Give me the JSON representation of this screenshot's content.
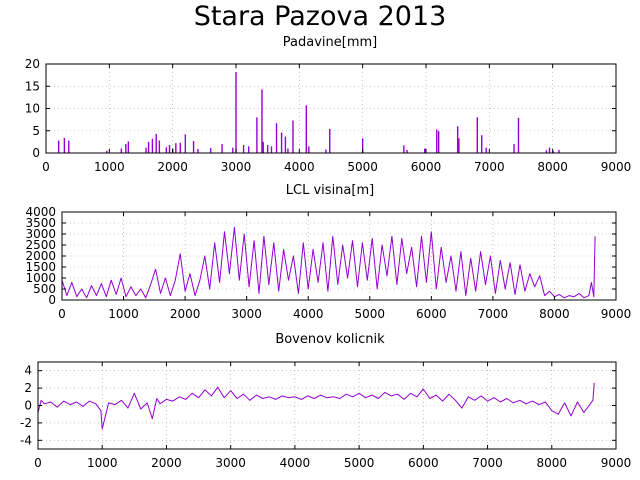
{
  "title": "Stara Pazova 2013",
  "series_color": "#9400d3",
  "chart_data": [
    {
      "type": "bar",
      "title": "Padavine[mm]",
      "xlim": [
        0,
        9000
      ],
      "ylim": [
        0,
        20
      ],
      "xticks": [
        0,
        1000,
        2000,
        3000,
        4000,
        5000,
        6000,
        7000,
        8000,
        9000
      ],
      "yticks": [
        0,
        5,
        10,
        15,
        20
      ],
      "grid": true,
      "x": [
        200,
        290,
        360,
        960,
        1190,
        1260,
        1300,
        1580,
        1620,
        1680,
        1740,
        1790,
        1900,
        1950,
        2000,
        2050,
        2120,
        2200,
        2330,
        2400,
        2600,
        2780,
        2950,
        3000,
        3120,
        3200,
        3330,
        3410,
        3430,
        3500,
        3560,
        3640,
        3720,
        3780,
        3820,
        3900,
        4110,
        4150,
        4420,
        4480,
        5000,
        5650,
        5700,
        5980,
        6170,
        6200,
        6500,
        6520,
        6810,
        6880,
        6950,
        7390,
        7460,
        7900,
        7950,
        8010,
        8100
      ],
      "values": [
        2.8,
        3.4,
        2.8,
        0.5,
        1.0,
        2.0,
        2.6,
        1.2,
        2.5,
        3.2,
        4.3,
        2.8,
        1.3,
        1.8,
        1.0,
        2.2,
        2.3,
        4.2,
        2.7,
        0.9,
        1.1,
        2.0,
        1.2,
        18.2,
        1.8,
        1.5,
        8.0,
        14.3,
        2.5,
        1.8,
        1.5,
        6.7,
        4.6,
        3.7,
        1.0,
        7.3,
        10.7,
        1.5,
        0.8,
        5.4,
        3.3,
        1.7,
        0.7,
        1.0,
        5.3,
        4.9,
        6.0,
        3.3,
        8.0,
        4.0,
        1.2,
        2.0,
        7.9,
        0.6,
        1.2,
        0.4,
        0.7
      ]
    },
    {
      "type": "line",
      "title": "LCL visina[m]",
      "xlim": [
        0,
        9000
      ],
      "ylim": [
        0,
        4000
      ],
      "xticks": [
        0,
        1000,
        2000,
        3000,
        4000,
        5000,
        6000,
        7000,
        8000,
        9000
      ],
      "yticks": [
        0,
        500,
        1000,
        1500,
        2000,
        2500,
        3000,
        3500,
        4000
      ],
      "grid": true,
      "x": [
        0,
        80,
        160,
        240,
        320,
        400,
        480,
        560,
        640,
        720,
        800,
        880,
        960,
        1040,
        1120,
        1200,
        1280,
        1360,
        1440,
        1520,
        1600,
        1680,
        1760,
        1840,
        1920,
        2000,
        2080,
        2160,
        2240,
        2320,
        2400,
        2480,
        2560,
        2640,
        2720,
        2800,
        2880,
        2960,
        3040,
        3120,
        3200,
        3280,
        3360,
        3440,
        3520,
        3600,
        3680,
        3760,
        3840,
        3920,
        4000,
        4080,
        4160,
        4240,
        4320,
        4400,
        4480,
        4560,
        4640,
        4720,
        4800,
        4880,
        4960,
        5040,
        5120,
        5200,
        5280,
        5360,
        5440,
        5520,
        5600,
        5680,
        5760,
        5840,
        5920,
        6000,
        6080,
        6160,
        6240,
        6320,
        6400,
        6480,
        6560,
        6640,
        6720,
        6800,
        6880,
        6960,
        7040,
        7120,
        7200,
        7280,
        7360,
        7440,
        7520,
        7600,
        7680,
        7760,
        7840,
        7920,
        8000,
        8080,
        8160,
        8240,
        8320,
        8400,
        8480,
        8560,
        8600,
        8640,
        8660
      ],
      "values": [
        900,
        200,
        800,
        150,
        500,
        100,
        650,
        200,
        750,
        150,
        900,
        250,
        1000,
        150,
        600,
        200,
        500,
        100,
        700,
        1400,
        300,
        1000,
        200,
        900,
        2100,
        400,
        1200,
        200,
        900,
        2000,
        500,
        2600,
        800,
        3100,
        1200,
        3300,
        900,
        3000,
        600,
        2700,
        300,
        2900,
        700,
        2600,
        400,
        2300,
        900,
        2000,
        300,
        2600,
        500,
        2300,
        800,
        2600,
        400,
        2900,
        700,
        2500,
        1000,
        2700,
        600,
        2600,
        900,
        2800,
        500,
        2500,
        1100,
        2900,
        700,
        2800,
        1200,
        2400,
        600,
        2900,
        800,
        3100,
        500,
        2400,
        800,
        2000,
        400,
        2200,
        200,
        1900,
        400,
        2200,
        700,
        2000,
        300,
        1800,
        500,
        1700,
        250,
        1600,
        400,
        1200,
        600,
        1100,
        200,
        400,
        150,
        250,
        100,
        200,
        150,
        300,
        100,
        200,
        800,
        150,
        2900
      ]
    },
    {
      "type": "line",
      "title": "Bovenov kolicnik",
      "xlim": [
        0,
        9000
      ],
      "ylim": [
        -5,
        5
      ],
      "xticks": [
        0,
        1000,
        2000,
        3000,
        4000,
        5000,
        6000,
        7000,
        8000,
        9000
      ],
      "yticks": [
        -4,
        -2,
        0,
        2,
        4
      ],
      "grid": true,
      "x": [
        0,
        50,
        100,
        200,
        300,
        400,
        500,
        600,
        700,
        800,
        900,
        980,
        1000,
        1100,
        1200,
        1300,
        1400,
        1500,
        1600,
        1700,
        1780,
        1850,
        1900,
        2000,
        2100,
        2200,
        2300,
        2400,
        2500,
        2600,
        2700,
        2800,
        2900,
        3000,
        3100,
        3200,
        3300,
        3400,
        3500,
        3600,
        3700,
        3800,
        3900,
        4000,
        4100,
        4200,
        4300,
        4400,
        4500,
        4600,
        4700,
        4800,
        4900,
        5000,
        5100,
        5200,
        5300,
        5400,
        5500,
        5600,
        5700,
        5800,
        5900,
        6000,
        6100,
        6200,
        6300,
        6400,
        6500,
        6600,
        6700,
        6800,
        6900,
        7000,
        7100,
        7200,
        7300,
        7400,
        7500,
        7600,
        7700,
        7800,
        7900,
        8000,
        8100,
        8200,
        8300,
        8400,
        8500,
        8600,
        8640,
        8660
      ],
      "values": [
        -0.8,
        0.6,
        0.2,
        0.4,
        -0.2,
        0.5,
        0.1,
        0.4,
        -0.1,
        0.5,
        0.2,
        -0.6,
        -2.7,
        0.3,
        0.1,
        0.6,
        -0.3,
        1.4,
        -0.4,
        0.3,
        -1.5,
        0.8,
        0.2,
        0.7,
        0.5,
        1.0,
        0.7,
        1.4,
        0.9,
        1.8,
        1.1,
        2.1,
        0.9,
        1.7,
        0.8,
        1.3,
        0.6,
        1.2,
        0.8,
        1.0,
        0.7,
        1.1,
        0.9,
        1.0,
        0.7,
        1.1,
        0.8,
        1.2,
        0.9,
        1.0,
        0.8,
        1.3,
        1.0,
        1.4,
        0.9,
        1.2,
        0.8,
        1.5,
        1.1,
        1.3,
        0.7,
        1.4,
        1.0,
        1.9,
        0.8,
        1.2,
        0.5,
        1.3,
        0.6,
        -0.3,
        1.0,
        0.6,
        1.1,
        0.5,
        0.9,
        0.4,
        0.8,
        0.3,
        0.6,
        0.2,
        0.5,
        0.1,
        0.4,
        -0.6,
        -1.0,
        0.3,
        -1.2,
        0.4,
        -0.8,
        0.2,
        0.6,
        2.6
      ]
    }
  ]
}
